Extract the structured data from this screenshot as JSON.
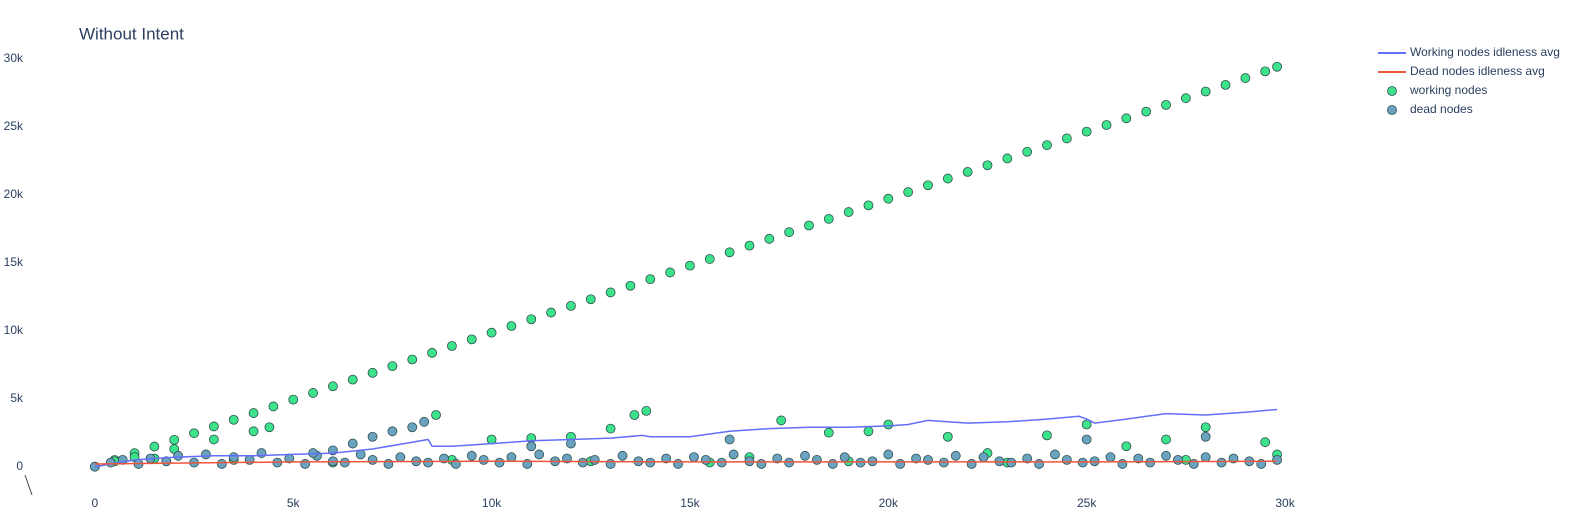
{
  "chart_data": {
    "type": "scatter",
    "title": "Without Intent",
    "xlim": [
      -400,
      30100
    ],
    "ylim": [
      -1200,
      31000
    ],
    "xticks": [
      0,
      {
        "value": 5000,
        "label": "5k"
      },
      {
        "value": 10000,
        "label": "10k"
      },
      {
        "value": 15000,
        "label": "15k"
      },
      {
        "value": 20000,
        "label": "20k"
      },
      {
        "value": 25000,
        "label": "25k"
      },
      {
        "value": 30000,
        "label": "30k"
      }
    ],
    "yticks": [
      0,
      {
        "value": 5000,
        "label": "5k"
      },
      {
        "value": 10000,
        "label": "10k"
      },
      {
        "value": 15000,
        "label": "15k"
      },
      {
        "value": 20000,
        "label": "20k"
      },
      {
        "value": 25000,
        "label": "25k"
      },
      {
        "value": 30000,
        "label": "30k"
      }
    ],
    "grid": false,
    "legend": "top-right",
    "series": [
      {
        "name": "Working nodes idleness avg",
        "mode": "lines",
        "color": "#636efa",
        "x": [
          0,
          1000,
          2000,
          3000,
          4000,
          5000,
          6000,
          7000,
          8000,
          8400,
          8500,
          9000,
          10000,
          11000,
          12000,
          13000,
          13800,
          14000,
          15000,
          16000,
          17000,
          18000,
          19000,
          20000,
          20500,
          21000,
          22000,
          23000,
          24000,
          24800,
          25000,
          25200,
          26000,
          27000,
          28000,
          29000,
          29800
        ],
        "values": [
          0,
          500,
          700,
          800,
          800,
          900,
          1000,
          1300,
          1800,
          2000,
          1500,
          1500,
          1700,
          1900,
          2000,
          2100,
          2300,
          2200,
          2200,
          2600,
          2800,
          2900,
          2900,
          3000,
          3100,
          3400,
          3200,
          3300,
          3500,
          3700,
          3500,
          3200,
          3500,
          3900,
          3800,
          4000,
          4200
        ]
      },
      {
        "name": "Dead nodes idleness avg",
        "mode": "lines",
        "color": "#ef553b",
        "x": [
          0,
          5000,
          10000,
          15000,
          20000,
          25000,
          29800
        ],
        "values": [
          200,
          350,
          400,
          350,
          350,
          350,
          400
        ]
      },
      {
        "name": "working nodes",
        "mode": "markers",
        "color": "#3de38b",
        "x": [
          0,
          500,
          1000,
          1500,
          2000,
          2500,
          3000,
          3500,
          4000,
          4500,
          5000,
          5500,
          6000,
          6500,
          7000,
          7500,
          8000,
          8500,
          9000,
          9500,
          10000,
          10500,
          11000,
          11500,
          12000,
          12500,
          13000,
          13500,
          14000,
          14500,
          15000,
          15500,
          16000,
          16500,
          17000,
          17500,
          18000,
          18500,
          19000,
          19500,
          20000,
          20500,
          21000,
          21500,
          22000,
          22500,
          23000,
          23500,
          24000,
          24500,
          25000,
          25500,
          26000,
          26500,
          27000,
          27500,
          28000,
          28500,
          29000,
          29500,
          29800,
          1000,
          2000,
          3000,
          4000,
          4400,
          8600,
          10000,
          11000,
          12000,
          13000,
          13600,
          13900,
          17300,
          18500,
          19500,
          20000,
          21500,
          22500,
          24000,
          25000,
          26000,
          27000,
          28000,
          29500,
          500,
          1500,
          3500,
          6000,
          9000,
          12500,
          15500,
          16500,
          19000,
          23000,
          27500,
          29800
        ],
        "values": [
          0,
          490,
          990,
          1480,
          1970,
          2460,
          2960,
          3450,
          3940,
          4430,
          4930,
          5420,
          5910,
          6400,
          6900,
          7390,
          7880,
          8370,
          8870,
          9360,
          9850,
          10340,
          10840,
          11330,
          11820,
          12310,
          12810,
          13300,
          13790,
          14280,
          14780,
          15270,
          15760,
          16250,
          16750,
          17240,
          17730,
          18220,
          18720,
          19210,
          19700,
          20190,
          20690,
          21180,
          21670,
          22160,
          22660,
          23150,
          23640,
          24130,
          24630,
          25120,
          25610,
          26100,
          26600,
          27090,
          27580,
          28070,
          28570,
          29060,
          29400,
          700,
          1300,
          2000,
          2600,
          2900,
          3800,
          2000,
          2100,
          2200,
          2800,
          3800,
          4100,
          3400,
          2500,
          2600,
          3100,
          2200,
          1000,
          2300,
          3100,
          1500,
          2000,
          2900,
          1800,
          400,
          600,
          500,
          300,
          500,
          400,
          300,
          700,
          400,
          300,
          500,
          900
        ]
      },
      {
        "name": "dead nodes",
        "mode": "markers",
        "color": "#6aa3c0",
        "x": [
          0,
          400,
          700,
          1100,
          1400,
          1800,
          2100,
          2500,
          2800,
          3200,
          3500,
          3900,
          4200,
          4600,
          4900,
          5300,
          5600,
          6000,
          6300,
          6700,
          7000,
          7400,
          7700,
          8100,
          8400,
          8800,
          9100,
          9500,
          9800,
          10200,
          10500,
          10900,
          11200,
          11600,
          11900,
          12300,
          12600,
          13000,
          13300,
          13700,
          14000,
          14400,
          14700,
          15100,
          15400,
          15800,
          16100,
          16500,
          16800,
          17200,
          17500,
          17900,
          18200,
          18600,
          18900,
          19300,
          19600,
          20000,
          20300,
          20700,
          21000,
          21400,
          21700,
          22100,
          22400,
          22800,
          23100,
          23500,
          23800,
          24200,
          24500,
          24900,
          25200,
          25600,
          25900,
          26300,
          26600,
          27000,
          27300,
          27700,
          28000,
          28400,
          28700,
          29100,
          29400,
          29800,
          5500,
          6000,
          6500,
          7000,
          7500,
          8000,
          8300,
          11000,
          12000,
          16000,
          25000,
          28000
        ],
        "values": [
          0,
          300,
          500,
          200,
          600,
          400,
          800,
          300,
          900,
          200,
          700,
          500,
          1000,
          300,
          600,
          200,
          800,
          400,
          300,
          900,
          500,
          200,
          700,
          400,
          300,
          600,
          200,
          800,
          500,
          300,
          700,
          200,
          900,
          400,
          600,
          300,
          500,
          200,
          800,
          400,
          300,
          600,
          200,
          700,
          500,
          300,
          900,
          400,
          200,
          600,
          300,
          800,
          500,
          200,
          700,
          300,
          400,
          900,
          200,
          600,
          500,
          300,
          800,
          200,
          700,
          400,
          300,
          600,
          200,
          900,
          500,
          300,
          400,
          700,
          200,
          600,
          300,
          800,
          500,
          200,
          700,
          300,
          600,
          400,
          200,
          500,
          1000,
          1200,
          1700,
          2200,
          2600,
          2900,
          3300,
          1500,
          1700,
          2000,
          2000,
          2200
        ]
      }
    ]
  }
}
